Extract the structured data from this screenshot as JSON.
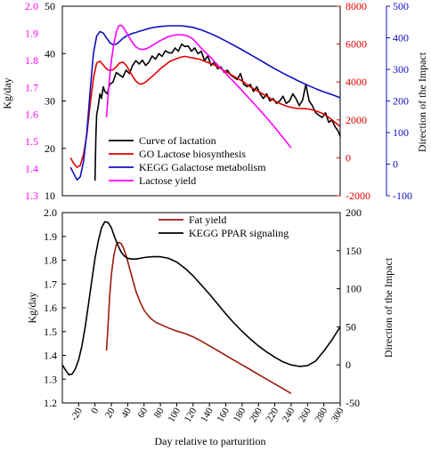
{
  "figure": {
    "xlabel": "Day relative to parturition"
  },
  "chart_data": [
    {
      "type": "line",
      "ylabel_left": "Kg/day",
      "ylabel_right": "Direction of the Impact",
      "x_ticks": [],
      "axes": [
        {
          "id": "milk",
          "color": "#000000",
          "ylim": [
            10,
            50
          ],
          "ticks": [
            10,
            20,
            30,
            40,
            50
          ]
        },
        {
          "id": "lactose",
          "color": "#ff00ff",
          "ylim": [
            1.3,
            2.0
          ],
          "ticks": [
            "1.3",
            "1.4",
            "1.5",
            "1.6",
            "1.7",
            "1.8",
            "1.9",
            "2.0"
          ]
        },
        {
          "id": "go",
          "color": "#e00000",
          "ylim": [
            -2000,
            8000
          ],
          "ticks": [
            "-2000",
            "0",
            "2000",
            "4000",
            "6000",
            "8000"
          ]
        },
        {
          "id": "kegg",
          "color": "#1010c0",
          "ylim": [
            -100,
            500
          ],
          "ticks": [
            "-100",
            "0",
            "100",
            "200",
            "300",
            "400",
            "500"
          ]
        }
      ],
      "series": [
        {
          "name": "Curve of lactation",
          "axis": "milk",
          "color": "#000000",
          "width": 1.6,
          "x": [
            0,
            1,
            2,
            4,
            6,
            8,
            10,
            12,
            15,
            18,
            22,
            26,
            30,
            34,
            38,
            42,
            46,
            50,
            54,
            58,
            62,
            66,
            70,
            74,
            78,
            82,
            86,
            90,
            94,
            98,
            102,
            106,
            110,
            114,
            118,
            122,
            126,
            130,
            134,
            138,
            142,
            146,
            150,
            154,
            158,
            162,
            166,
            170,
            174,
            178,
            182,
            186,
            190,
            194,
            198,
            202,
            206,
            210,
            214,
            218,
            222,
            226,
            230,
            234,
            238,
            242,
            246,
            250,
            254,
            258,
            262,
            266,
            270,
            274,
            278,
            282,
            286,
            290,
            294,
            298,
            300
          ],
          "y": [
            13.2,
            22,
            27,
            29,
            31.5,
            30.5,
            33,
            32,
            31.5,
            33.5,
            34,
            36,
            35.5,
            35,
            36.5,
            35.8,
            37.5,
            38.5,
            37.8,
            38.6,
            37.5,
            38.2,
            39.5,
            38.8,
            40,
            39.4,
            40.6,
            40.2,
            40.1,
            41.2,
            40.5,
            42,
            41.5,
            41.6,
            40.5,
            41.2,
            40,
            40.5,
            38.5,
            39.5,
            37.5,
            38.2,
            36.8,
            37.2,
            36,
            36.5,
            35.5,
            35,
            34.5,
            35.8,
            33.5,
            33,
            33.5,
            32,
            33,
            31.5,
            30.5,
            31.5,
            30,
            30.5,
            29.5,
            30,
            31,
            29.5,
            30,
            31.5,
            30.5,
            29,
            30.2,
            33.5,
            30,
            29,
            27.5,
            27,
            26.5,
            27.5,
            25.5,
            26,
            24.5,
            23.5,
            22.5
          ]
        },
        {
          "name": "GO Lactose biosynthesis",
          "axis": "go",
          "color": "#e00000",
          "width": 1.6,
          "x": [
            -30,
            -26,
            -22,
            -18,
            -14,
            -10,
            -6,
            -2,
            2,
            6,
            10,
            14,
            18,
            22,
            26,
            30,
            34,
            38,
            42,
            46,
            50,
            54,
            58,
            62,
            66,
            70,
            74,
            80,
            86,
            92,
            98,
            104,
            110,
            116,
            122,
            128,
            134,
            140,
            146,
            152,
            158,
            164,
            170,
            176,
            182,
            188,
            194,
            200,
            206,
            212,
            218,
            224,
            230,
            236,
            242,
            248,
            254,
            260,
            266,
            272,
            278,
            284,
            290,
            296,
            300
          ],
          "y": [
            0,
            -300,
            -500,
            -400,
            200,
            1200,
            2800,
            4200,
            5000,
            5100,
            4900,
            4700,
            4600,
            4650,
            4800,
            5000,
            5050,
            4900,
            4600,
            4300,
            4050,
            3900,
            3900,
            4000,
            4150,
            4300,
            4450,
            4700,
            4900,
            5100,
            5200,
            5300,
            5350,
            5300,
            5250,
            5200,
            5100,
            5000,
            4900,
            4750,
            4600,
            4450,
            4300,
            4150,
            4000,
            3800,
            3650,
            3500,
            3350,
            3200,
            3050,
            2900,
            2800,
            2700,
            2650,
            2600,
            2600,
            2580,
            2530,
            2450,
            2350,
            2200,
            2000,
            1800,
            1650
          ]
        },
        {
          "name": "KEGG Galactose metabolism",
          "axis": "kegg",
          "color": "#1010c0",
          "width": 1.6,
          "x": [
            -30,
            -26,
            -22,
            -18,
            -14,
            -10,
            -6,
            -2,
            2,
            6,
            10,
            14,
            18,
            22,
            26,
            30,
            34,
            38,
            42,
            46,
            50,
            55,
            60,
            65,
            70,
            75,
            80,
            85,
            90,
            95,
            100,
            105,
            110,
            120,
            130,
            140,
            150,
            160,
            170,
            180,
            190,
            200,
            210,
            220,
            230,
            240,
            250,
            260,
            270,
            280,
            290,
            300
          ],
          "y": [
            -10,
            -30,
            -50,
            -40,
            10,
            100,
            230,
            350,
            405,
            420,
            415,
            400,
            385,
            378,
            380,
            388,
            398,
            405,
            410,
            414,
            417,
            421,
            425,
            429,
            432,
            434,
            436,
            437,
            438,
            438,
            438,
            438,
            437,
            433,
            425,
            415,
            403,
            390,
            376,
            362,
            347,
            332,
            317,
            302,
            288,
            275,
            262,
            250,
            239,
            229,
            220,
            210
          ]
        },
        {
          "name": "Lactose yield",
          "axis": "lactose",
          "color": "#ff00ff",
          "width": 1.6,
          "x": [
            14,
            16,
            18,
            20,
            23,
            26,
            29,
            32,
            35,
            38,
            42,
            46,
            50,
            54,
            58,
            62,
            66,
            70,
            74,
            78,
            82,
            86,
            90,
            95,
            100,
            105,
            110,
            115,
            120,
            125,
            130,
            135,
            140,
            150,
            160,
            170,
            180,
            190,
            200,
            210,
            220,
            230,
            240
          ],
          "y": [
            1.59,
            1.67,
            1.74,
            1.8,
            1.86,
            1.905,
            1.927,
            1.93,
            1.92,
            1.905,
            1.885,
            1.865,
            1.85,
            1.842,
            1.84,
            1.842,
            1.848,
            1.855,
            1.862,
            1.87,
            1.876,
            1.882,
            1.888,
            1.892,
            1.895,
            1.895,
            1.893,
            1.888,
            1.878,
            1.862,
            1.845,
            1.83,
            1.815,
            1.783,
            1.752,
            1.72,
            1.688,
            1.655,
            1.622,
            1.588,
            1.552,
            1.515,
            1.477
          ]
        }
      ],
      "legend": {
        "placement": "bottom-center",
        "entries": [
          "Curve of lactation",
          "GO Lactose biosynthesis",
          "KEGG Galactose metabolism",
          "Lactose yield"
        ]
      }
    },
    {
      "type": "line",
      "ylabel_left": "Kg/day",
      "ylabel_right": "Direction of the Impact",
      "xlim": [
        -40,
        300
      ],
      "x_ticks": [
        "-20",
        "0",
        "20",
        "40",
        "60",
        "80",
        "100",
        "120",
        "140",
        "160",
        "180",
        "200",
        "220",
        "240",
        "260",
        "280",
        "300"
      ],
      "axes": [
        {
          "id": "fat",
          "color": "#000000",
          "ylim": [
            1.2,
            2.0
          ],
          "ticks": [
            "1.2",
            "1.3",
            "1.4",
            "1.5",
            "1.6",
            "1.7",
            "1.8",
            "1.9",
            "2.0"
          ]
        },
        {
          "id": "ppar",
          "color": "#000000",
          "ylim": [
            -50,
            200
          ],
          "ticks": [
            "-50",
            "0",
            "50",
            "100",
            "150",
            "200"
          ]
        }
      ],
      "series": [
        {
          "name": "Fat yield",
          "axis": "fat",
          "color": "#9b1c0c",
          "width": 1.6,
          "x": [
            14,
            16,
            18,
            20,
            23,
            26,
            29,
            32,
            35,
            38,
            42,
            46,
            50,
            55,
            60,
            65,
            70,
            75,
            80,
            90,
            100,
            110,
            120,
            130,
            140,
            150,
            160,
            170,
            180,
            190,
            200,
            210,
            220,
            230,
            240
          ],
          "y": [
            1.42,
            1.53,
            1.65,
            1.74,
            1.82,
            1.865,
            1.875,
            1.87,
            1.85,
            1.82,
            1.77,
            1.72,
            1.67,
            1.625,
            1.59,
            1.567,
            1.55,
            1.538,
            1.53,
            1.515,
            1.502,
            1.492,
            1.478,
            1.46,
            1.44,
            1.42,
            1.4,
            1.38,
            1.36,
            1.34,
            1.32,
            1.3,
            1.28,
            1.26,
            1.24
          ]
        },
        {
          "name": "KEGG PPAR signaling",
          "axis": "ppar",
          "color": "#000000",
          "width": 1.6,
          "x": [
            -40,
            -36,
            -32,
            -28,
            -24,
            -20,
            -16,
            -12,
            -8,
            -4,
            0,
            4,
            8,
            12,
            16,
            20,
            24,
            28,
            32,
            36,
            40,
            45,
            50,
            55,
            60,
            70,
            80,
            90,
            100,
            110,
            120,
            130,
            140,
            150,
            160,
            170,
            180,
            190,
            200,
            210,
            220,
            230,
            240,
            250,
            260,
            270,
            280,
            290,
            300
          ],
          "y": [
            0,
            -7,
            -13,
            -12,
            -5,
            7,
            25,
            50,
            80,
            110,
            140,
            163,
            180,
            188,
            187,
            180,
            168,
            157,
            148,
            143,
            140,
            139,
            139,
            140,
            141,
            142,
            142,
            140,
            135,
            127,
            117,
            105,
            93,
            80,
            67,
            55,
            44,
            34,
            25,
            17,
            10,
            4,
            0,
            -2,
            -1,
            5,
            18,
            33,
            50
          ]
        }
      ],
      "legend": {
        "placement": "top-center",
        "entries": [
          "Fat yield",
          "KEGG PPAR signaling"
        ]
      }
    }
  ]
}
